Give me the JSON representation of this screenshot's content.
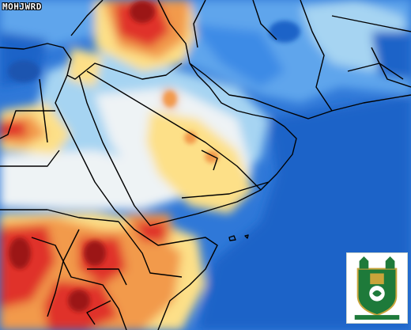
{
  "watermark": "MOHJWRD",
  "colors": {
    "deep_blue": "#1f64c8",
    "blue": "#3c8be6",
    "light_blue": "#a6d4f2",
    "near_white": "#eef3f5",
    "yellow": "#fde088",
    "orange": "#f29a4b",
    "red": "#e0332a",
    "dark_red": "#9c1414",
    "border": "#000000",
    "logo_green": "#1e7a3a",
    "logo_gold": "#c9a43a"
  },
  "logo": {
    "icon": "university-emblem-icon"
  }
}
